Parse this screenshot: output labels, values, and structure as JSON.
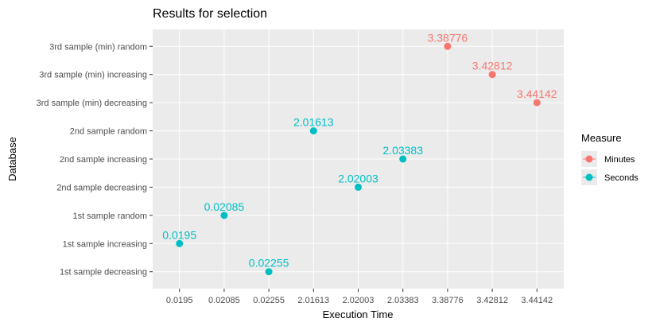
{
  "chart_data": {
    "type": "scatter",
    "title": "Results for selection",
    "xlabel": "Execution Time",
    "ylabel": "Database",
    "x_categories": [
      "0.0195",
      "0.02085",
      "0.02255",
      "2.01613",
      "2.02003",
      "2.03383",
      "3.38776",
      "3.42812",
      "3.44142"
    ],
    "y_categories": [
      "1st sample decreasing",
      "1st sample increasing",
      "1st sample random",
      "2nd sample decreasing",
      "2nd sample increasing",
      "2nd sample random",
      "3rd sample (min) decreasing",
      "3rd sample (min) increasing",
      "3rd sample (min) random"
    ],
    "series": [
      {
        "name": "Minutes",
        "color": "#F8766D",
        "points": [
          {
            "y": "3rd sample (min) random",
            "x": "3.38776",
            "label": "3.38776"
          },
          {
            "y": "3rd sample (min) increasing",
            "x": "3.42812",
            "label": "3.42812"
          },
          {
            "y": "3rd sample (min) decreasing",
            "x": "3.44142",
            "label": "3.44142"
          }
        ]
      },
      {
        "name": "Seconds",
        "color": "#00BFC4",
        "points": [
          {
            "y": "2nd sample random",
            "x": "2.01613",
            "label": "2.01613"
          },
          {
            "y": "2nd sample increasing",
            "x": "2.03383",
            "label": "2.03383"
          },
          {
            "y": "2nd sample decreasing",
            "x": "2.02003",
            "label": "2.02003"
          },
          {
            "y": "1st sample random",
            "x": "0.02085",
            "label": "0.02085"
          },
          {
            "y": "1st sample increasing",
            "x": "0.0195",
            "label": "0.0195"
          },
          {
            "y": "1st sample decreasing",
            "x": "0.02255",
            "label": "0.02255"
          }
        ]
      }
    ],
    "legend": {
      "title": "Measure",
      "position": "right"
    },
    "grid": true,
    "panel_background": "#EBEBEB",
    "grid_color": "#FFFFFF"
  }
}
